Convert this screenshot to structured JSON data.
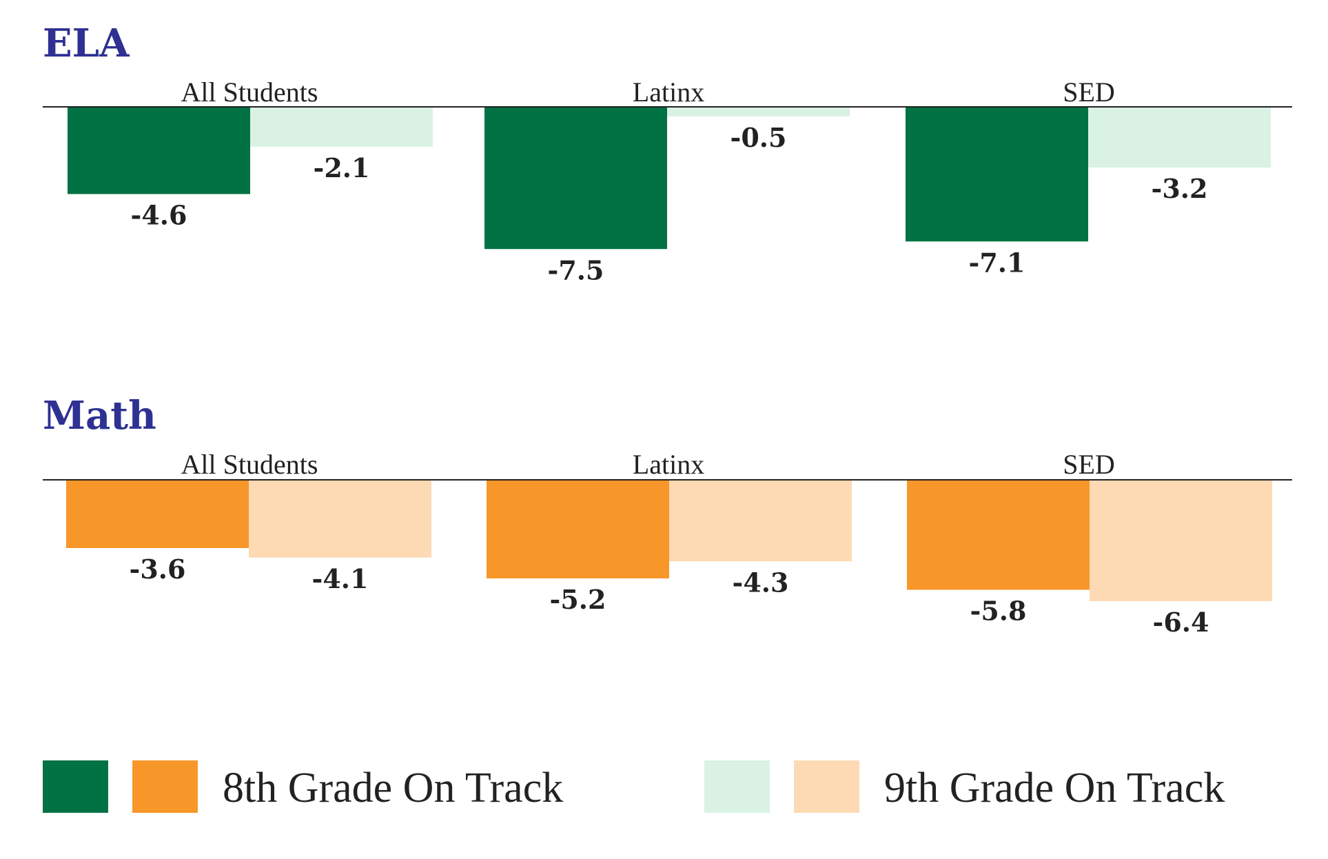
{
  "chart_data": [
    {
      "type": "bar",
      "title": "ELA",
      "categories": [
        "All Students",
        "Latinx",
        "SED"
      ],
      "series": [
        {
          "name": "8th Grade On Track",
          "values": [
            -4.6,
            -7.5,
            -7.1
          ],
          "color": "#007243"
        },
        {
          "name": "9th Grade On Track",
          "values": [
            -2.1,
            -0.5,
            -3.2
          ],
          "color": "#d9f2e3"
        }
      ],
      "value_labels": [
        [
          "-4.6",
          "-7.5",
          "-7.1"
        ],
        [
          "-2.1",
          "-0.5",
          "-3.2"
        ]
      ],
      "ylim": [
        -8,
        0
      ]
    },
    {
      "type": "bar",
      "title": "Math",
      "categories": [
        "All Students",
        "Latinx",
        "SED"
      ],
      "series": [
        {
          "name": "8th Grade On Track",
          "values": [
            -3.6,
            -5.2,
            -5.8
          ],
          "color": "#f7972a"
        },
        {
          "name": "9th Grade On Track",
          "values": [
            -4.1,
            -4.3,
            -6.4
          ],
          "color": "#fddab4"
        }
      ],
      "value_labels": [
        [
          "-3.6",
          "-5.2",
          "-5.8"
        ],
        [
          "-4.1",
          "-4.3",
          "-6.4"
        ]
      ],
      "ylim": [
        -8,
        0
      ]
    }
  ],
  "legend": {
    "position": "bottom",
    "entries": [
      {
        "label": "8th Grade On Track",
        "colors": [
          "#007243",
          "#f7972a"
        ]
      },
      {
        "label": "9th Grade On Track",
        "colors": [
          "#d9f2e3",
          "#fddab4"
        ]
      }
    ]
  }
}
